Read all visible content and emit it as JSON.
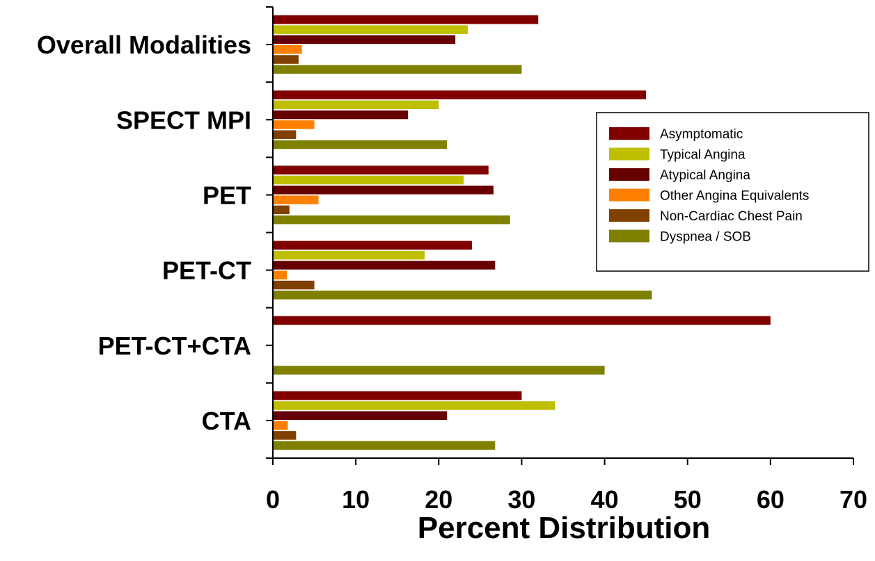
{
  "chart_data": {
    "type": "bar",
    "orientation": "horizontal",
    "categories": [
      "Overall Modalities",
      "SPECT MPI",
      "PET",
      "PET-CT",
      "PET-CT+CTA",
      "CTA"
    ],
    "series": [
      {
        "name": "Asymptomatic",
        "color": "#800000",
        "values": [
          32,
          45,
          26,
          24,
          60,
          30
        ]
      },
      {
        "name": "Typical Angina",
        "color": "#BFBF00",
        "values": [
          23.5,
          20,
          23,
          18.3,
          0,
          34
        ]
      },
      {
        "name": "Atypical Angina",
        "color": "#660000",
        "values": [
          22,
          16.3,
          26.6,
          26.8,
          0,
          21
        ]
      },
      {
        "name": "Other Angina Equivalents",
        "color": "#FF8000",
        "values": [
          3.5,
          5,
          5.5,
          1.7,
          0,
          1.8
        ]
      },
      {
        "name": "Non-Cardiac Chest Pain",
        "color": "#804000",
        "values": [
          3.1,
          2.8,
          2,
          5,
          0,
          2.8
        ]
      },
      {
        "name": "Dyspnea / SOB",
        "color": "#808000",
        "values": [
          30,
          21,
          28.6,
          45.7,
          40,
          26.8
        ]
      }
    ],
    "xlabel": "Percent Distribution",
    "ylabel": "",
    "xlim": [
      0,
      70
    ],
    "xticks": [
      "0",
      "10",
      "20",
      "30",
      "40",
      "50",
      "60",
      "70"
    ],
    "grid": false,
    "legend_position": "right"
  }
}
